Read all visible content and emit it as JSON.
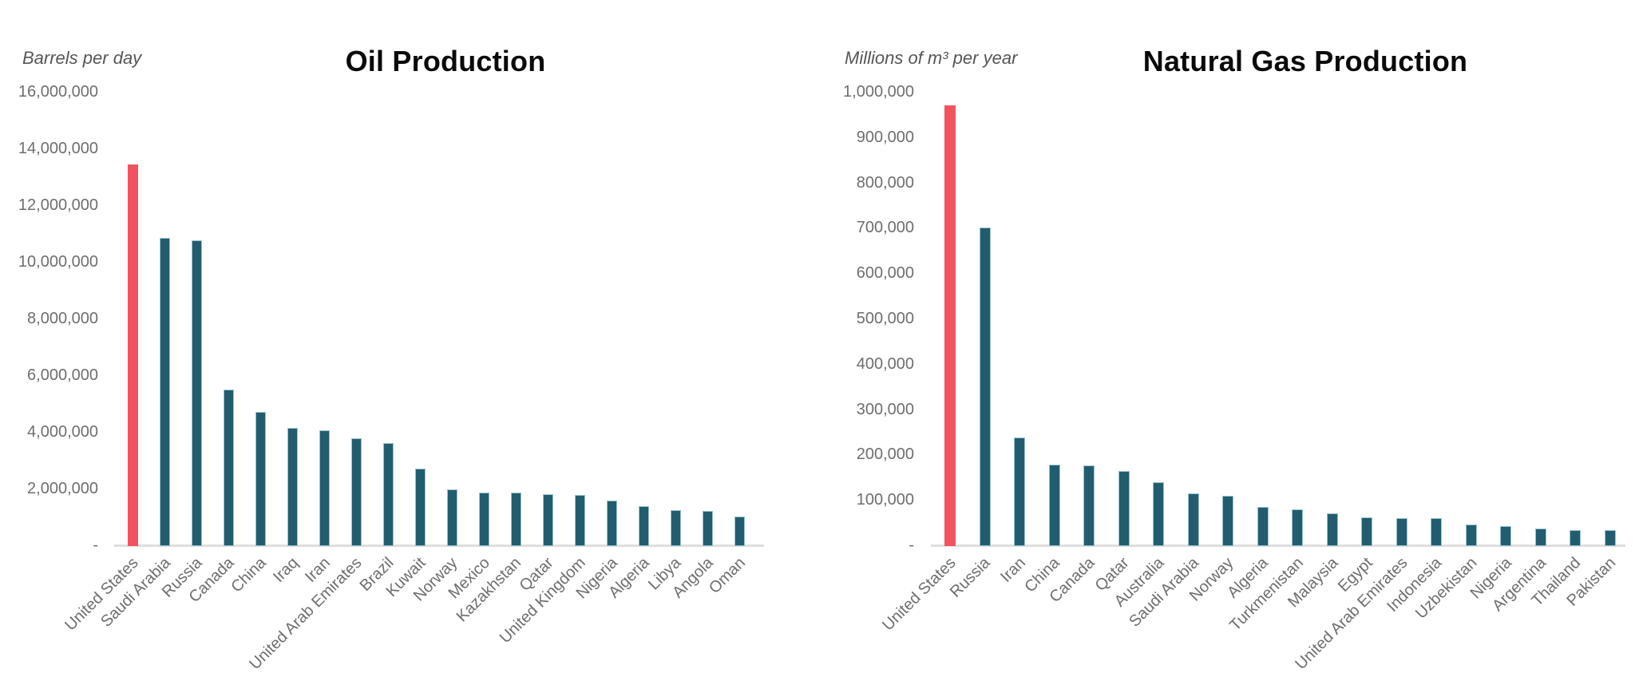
{
  "page": {
    "background": "#ffffff",
    "axis_text_color": "#6e6e6e",
    "caption_text_color": "#565656",
    "baseline_color": "#dedede"
  },
  "chart_data": [
    {
      "type": "bar",
      "title": "Oil Production",
      "unit_label": "Barrels per day",
      "categories": [
        "United States",
        "Saudi Arabia",
        "Russia",
        "Canada",
        "China",
        "Iraq",
        "Iran",
        "United Arab Emirates",
        "Brazil",
        "Kuwait",
        "Norway",
        "Mexico",
        "Kazakhstan",
        "Qatar",
        "United Kingdom",
        "Nigeria",
        "Algeria",
        "Libya",
        "Angola",
        "Oman"
      ],
      "values": [
        13440000,
        10850000,
        10770000,
        5490000,
        4700000,
        4140000,
        4060000,
        3770000,
        3610000,
        2700000,
        1970000,
        1870000,
        1860000,
        1800000,
        1770000,
        1580000,
        1380000,
        1240000,
        1210000,
        1010000
      ],
      "ylim": [
        0,
        16000000
      ],
      "ytick_step": 2000000,
      "zero_tick_label": "-",
      "grid": "off",
      "legend": "none",
      "bar_color": "#215d6e",
      "highlight_category": "United States",
      "highlight_index": 0,
      "highlight_color": "#f2545f"
    },
    {
      "type": "bar",
      "title": "Natural Gas Production",
      "unit_label": "Millions of m³ per year",
      "categories": [
        "United States",
        "Russia",
        "Iran",
        "China",
        "Canada",
        "Qatar",
        "Australia",
        "Saudi Arabia",
        "Norway",
        "Algeria",
        "Turkmenistan",
        "Malaysia",
        "Egypt",
        "United Arab Emirates",
        "Indonesia",
        "Uzbekistan",
        "Nigeria",
        "Argentina",
        "Thailand",
        "Pakistan"
      ],
      "values": [
        970000,
        700000,
        237000,
        178000,
        176000,
        164000,
        139000,
        114000,
        110000,
        84000,
        80000,
        70000,
        62000,
        60000,
        59000,
        45000,
        43000,
        37000,
        34000,
        33500
      ],
      "ylim": [
        0,
        1000000
      ],
      "ytick_step": 100000,
      "zero_tick_label": "-",
      "grid": "off",
      "legend": "none",
      "bar_color": "#215d6e",
      "highlight_category": "United States",
      "highlight_index": 0,
      "highlight_color": "#f2545f"
    }
  ]
}
